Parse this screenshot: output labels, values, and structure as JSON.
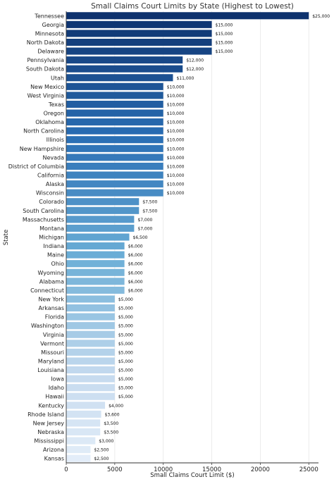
{
  "chart_data": {
    "type": "bar",
    "orientation": "horizontal",
    "title": "Small Claims Court Limits by State (Highest to Lowest)",
    "xlabel": "Small Claims Court Limit ($)",
    "ylabel": "State",
    "xlim": [
      0,
      26000
    ],
    "xticks": [
      0,
      5000,
      10000,
      15000,
      20000,
      25000
    ],
    "xtick_labels": [
      "0",
      "5000",
      "10000",
      "15000",
      "20000",
      "25000"
    ],
    "grid": "vertical gridlines",
    "colormap": "Blues (dark for highest, light for lowest)",
    "categories": [
      "Tennessee",
      "Georgia",
      "Minnesota",
      "North Dakota",
      "Delaware",
      "Pennsylvania",
      "South Dakota",
      "Utah",
      "New Mexico",
      "West Virginia",
      "Texas",
      "Oregon",
      "Oklahoma",
      "North Carolina",
      "Illinois",
      "New Hampshire",
      "Nevada",
      "District of Columbia",
      "California",
      "Alaska",
      "Wisconsin",
      "Colorado",
      "South Carolina",
      "Massachusetts",
      "Montana",
      "Michigan",
      "Indiana",
      "Maine",
      "Ohio",
      "Wyoming",
      "Alabama",
      "Connecticut",
      "New York",
      "Arkansas",
      "Florida",
      "Washington",
      "Virginia",
      "Vermont",
      "Missouri",
      "Maryland",
      "Louisiana",
      "Iowa",
      "Idaho",
      "Hawaii",
      "Kentucky",
      "Rhode Island",
      "New Jersey",
      "Nebraska",
      "Mississippi",
      "Arizona",
      "Kansas"
    ],
    "values": [
      25000,
      15000,
      15000,
      15000,
      15000,
      12000,
      12000,
      11000,
      10000,
      10000,
      10000,
      10000,
      10000,
      10000,
      10000,
      10000,
      10000,
      10000,
      10000,
      10000,
      10000,
      7500,
      7500,
      7000,
      7000,
      6500,
      6000,
      6000,
      6000,
      6000,
      6000,
      6000,
      5000,
      5000,
      5000,
      5000,
      5000,
      5000,
      5000,
      5000,
      5000,
      5000,
      5000,
      5000,
      4000,
      3600,
      3500,
      3500,
      3000,
      2500,
      2500
    ],
    "value_labels": [
      "$25,000",
      "$15,000",
      "$15,000",
      "$15,000",
      "$15,000",
      "$12,000",
      "$12,000",
      "$11,000",
      "$10,000",
      "$10,000",
      "$10,000",
      "$10,000",
      "$10,000",
      "$10,000",
      "$10,000",
      "$10,000",
      "$10,000",
      "$10,000",
      "$10,000",
      "$10,000",
      "$10,000",
      "$7,500",
      "$7,500",
      "$7,000",
      "$7,000",
      "$6,500",
      "$6,000",
      "$6,000",
      "$6,000",
      "$6,000",
      "$6,000",
      "$6,000",
      "$5,000",
      "$5,000",
      "$5,000",
      "$5,000",
      "$5,000",
      "$5,000",
      "$5,000",
      "$5,000",
      "$5,000",
      "$5,000",
      "$5,000",
      "$5,000",
      "$4,000",
      "$3,600",
      "$3,500",
      "$3,500",
      "$3,000",
      "$2,500",
      "$2,500"
    ]
  }
}
